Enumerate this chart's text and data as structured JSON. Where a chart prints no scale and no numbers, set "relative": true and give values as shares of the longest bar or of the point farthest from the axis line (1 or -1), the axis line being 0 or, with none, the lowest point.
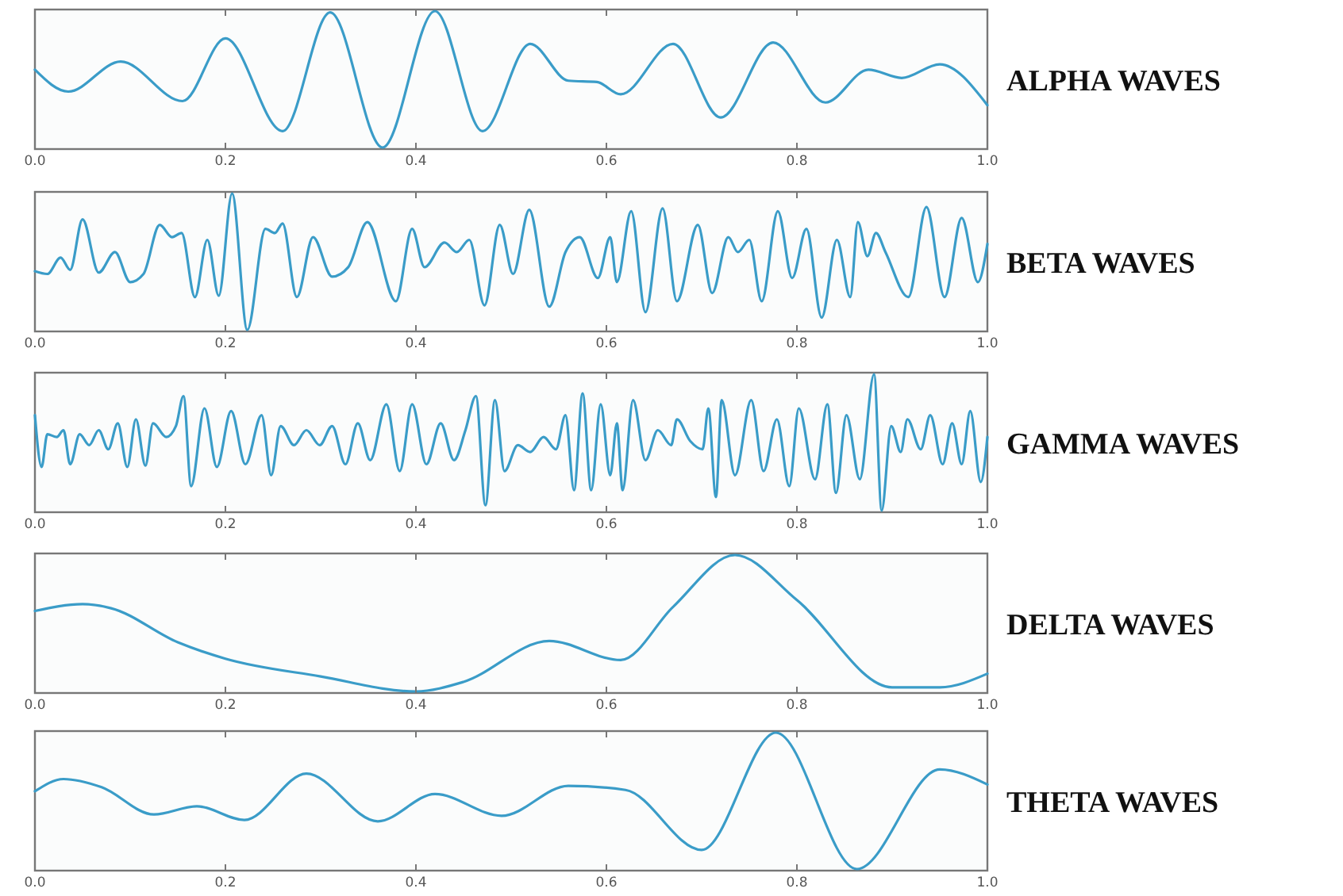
{
  "chart_data": [
    {
      "type": "line",
      "title": "ALPHA WAVES",
      "relative": true,
      "color": "#3a9cc8",
      "xlim": [
        0,
        1
      ],
      "xticks": [
        {
          "value": 0,
          "label": "0.0"
        },
        {
          "value": 0.2,
          "label": "0.2"
        },
        {
          "value": 0.4,
          "label": "0.4"
        },
        {
          "value": 0.6,
          "label": "0.6"
        },
        {
          "value": 0.8,
          "label": "0.8"
        },
        {
          "value": 1,
          "label": "1.0"
        }
      ],
      "x": [
        0,
        0.035,
        0.09,
        0.155,
        0.2,
        0.26,
        0.31,
        0.365,
        0.42,
        0.47,
        0.52,
        0.56,
        0.59,
        0.615,
        0.67,
        0.72,
        0.775,
        0.83,
        0.875,
        0.91,
        0.95,
        1
      ],
      "values": [
        0.57,
        0.41,
        0.63,
        0.34,
        0.8,
        0.12,
        0.99,
        0,
        1,
        0.12,
        0.76,
        0.49,
        0.48,
        0.39,
        0.76,
        0.22,
        0.77,
        0.33,
        0.57,
        0.51,
        0.61,
        0.31
      ]
    },
    {
      "type": "line",
      "title": "BETA WAVES",
      "relative": true,
      "color": "#3a9cc8",
      "xlim": [
        0,
        1
      ],
      "xticks": [
        {
          "value": 0,
          "label": "0.0"
        },
        {
          "value": 0.2,
          "label": "0.2"
        },
        {
          "value": 0.4,
          "label": "0.4"
        },
        {
          "value": 0.6,
          "label": "0.6"
        },
        {
          "value": 0.8,
          "label": "0.8"
        },
        {
          "value": 1,
          "label": "1.0"
        }
      ],
      "x": [
        0,
        0.013,
        0.027,
        0.037,
        0.05,
        0.067,
        0.084,
        0.1,
        0.114,
        0.131,
        0.144,
        0.154,
        0.168,
        0.181,
        0.193,
        0.207,
        0.223,
        0.242,
        0.252,
        0.26,
        0.275,
        0.292,
        0.312,
        0.329,
        0.349,
        0.379,
        0.396,
        0.409,
        0.43,
        0.443,
        0.456,
        0.472,
        0.488,
        0.502,
        0.519,
        0.54,
        0.557,
        0.572,
        0.591,
        0.604,
        0.611,
        0.626,
        0.641,
        0.659,
        0.674,
        0.696,
        0.711,
        0.728,
        0.738,
        0.75,
        0.763,
        0.78,
        0.795,
        0.81,
        0.826,
        0.842,
        0.856,
        0.864,
        0.874,
        0.883,
        0.893,
        0.917,
        0.936,
        0.955,
        0.973,
        0.99,
        1
      ],
      "values": [
        0.43,
        0.41,
        0.53,
        0.44,
        0.81,
        0.42,
        0.57,
        0.35,
        0.41,
        0.77,
        0.68,
        0.71,
        0.24,
        0.66,
        0.25,
        1,
        0,
        0.74,
        0.71,
        0.78,
        0.24,
        0.68,
        0.39,
        0.46,
        0.79,
        0.21,
        0.74,
        0.46,
        0.64,
        0.57,
        0.66,
        0.18,
        0.77,
        0.41,
        0.88,
        0.17,
        0.57,
        0.68,
        0.38,
        0.68,
        0.35,
        0.87,
        0.13,
        0.89,
        0.21,
        0.77,
        0.27,
        0.68,
        0.57,
        0.66,
        0.21,
        0.87,
        0.38,
        0.74,
        0.09,
        0.66,
        0.24,
        0.79,
        0.54,
        0.71,
        0.57,
        0.24,
        0.9,
        0.24,
        0.82,
        0.35,
        0.63
      ]
    },
    {
      "type": "line",
      "title": "GAMMA WAVES",
      "relative": true,
      "color": "#3a9cc8",
      "xlim": [
        0,
        1
      ],
      "xticks": [
        {
          "value": 0,
          "label": "0.0"
        },
        {
          "value": 0.2,
          "label": "0.2"
        },
        {
          "value": 0.4,
          "label": "0.4"
        },
        {
          "value": 0.6,
          "label": "0.6"
        },
        {
          "value": 0.8,
          "label": "0.8"
        },
        {
          "value": 1,
          "label": "1.0"
        }
      ],
      "x": [
        0,
        0.007,
        0.013,
        0.023,
        0.03,
        0.037,
        0.047,
        0.057,
        0.067,
        0.077,
        0.087,
        0.097,
        0.106,
        0.116,
        0.124,
        0.138,
        0.148,
        0.156,
        0.164,
        0.178,
        0.191,
        0.206,
        0.221,
        0.238,
        0.248,
        0.258,
        0.272,
        0.285,
        0.299,
        0.312,
        0.326,
        0.339,
        0.352,
        0.369,
        0.383,
        0.396,
        0.411,
        0.426,
        0.44,
        0.452,
        0.463,
        0.473,
        0.483,
        0.493,
        0.507,
        0.52,
        0.534,
        0.547,
        0.557,
        0.566,
        0.575,
        0.584,
        0.594,
        0.604,
        0.611,
        0.617,
        0.628,
        0.641,
        0.654,
        0.668,
        0.674,
        0.688,
        0.701,
        0.707,
        0.715,
        0.721,
        0.735,
        0.752,
        0.765,
        0.779,
        0.792,
        0.802,
        0.819,
        0.832,
        0.841,
        0.852,
        0.866,
        0.881,
        0.889,
        0.899,
        0.909,
        0.916,
        0.93,
        0.94,
        0.953,
        0.963,
        0.973,
        0.982,
        0.993,
        1
      ],
      "values": [
        0.7,
        0.32,
        0.56,
        0.54,
        0.59,
        0.34,
        0.56,
        0.48,
        0.59,
        0.45,
        0.64,
        0.32,
        0.67,
        0.33,
        0.64,
        0.54,
        0.62,
        0.84,
        0.18,
        0.75,
        0.32,
        0.73,
        0.34,
        0.7,
        0.26,
        0.62,
        0.48,
        0.59,
        0.48,
        0.62,
        0.34,
        0.64,
        0.37,
        0.78,
        0.29,
        0.78,
        0.34,
        0.64,
        0.37,
        0.59,
        0.84,
        0.04,
        0.81,
        0.29,
        0.48,
        0.43,
        0.54,
        0.45,
        0.7,
        0.15,
        0.86,
        0.15,
        0.78,
        0.26,
        0.64,
        0.15,
        0.81,
        0.37,
        0.59,
        0.48,
        0.67,
        0.51,
        0.45,
        0.75,
        0.1,
        0.81,
        0.26,
        0.81,
        0.29,
        0.67,
        0.18,
        0.75,
        0.23,
        0.78,
        0.13,
        0.7,
        0.23,
        1,
        0,
        0.62,
        0.43,
        0.67,
        0.45,
        0.7,
        0.34,
        0.64,
        0.34,
        0.73,
        0.21,
        0.54
      ]
    },
    {
      "type": "line",
      "title": "DELTA WAVES",
      "relative": true,
      "color": "#3a9cc8",
      "xlim": [
        0,
        1
      ],
      "xticks": [
        {
          "value": 0,
          "label": "0.0"
        },
        {
          "value": 0.2,
          "label": "0.2"
        },
        {
          "value": 0.4,
          "label": "0.4"
        },
        {
          "value": 0.6,
          "label": "0.6"
        },
        {
          "value": 0.8,
          "label": "0.8"
        },
        {
          "value": 1,
          "label": "1.0"
        }
      ],
      "x": [
        0,
        0.05,
        0.08,
        0.15,
        0.2,
        0.3,
        0.4,
        0.45,
        0.54,
        0.615,
        0.67,
        0.735,
        0.8,
        0.9,
        0.95,
        1
      ],
      "values": [
        0.59,
        0.64,
        0.61,
        0.36,
        0.24,
        0.11,
        0,
        0.07,
        0.37,
        0.23,
        0.62,
        1,
        0.67,
        0.03,
        0.03,
        0.13
      ]
    },
    {
      "type": "line",
      "title": "THETA WAVES",
      "relative": true,
      "color": "#3a9cc8",
      "xlim": [
        0,
        1
      ],
      "xticks": [
        {
          "value": 0,
          "label": "0.0"
        },
        {
          "value": 0.2,
          "label": "0.2"
        },
        {
          "value": 0.4,
          "label": "0.4"
        },
        {
          "value": 0.6,
          "label": "0.6"
        },
        {
          "value": 0.8,
          "label": "0.8"
        },
        {
          "value": 1,
          "label": "1.0"
        }
      ],
      "x": [
        0,
        0.03,
        0.07,
        0.125,
        0.17,
        0.22,
        0.285,
        0.36,
        0.42,
        0.49,
        0.56,
        0.62,
        0.7,
        0.778,
        0.863,
        0.95,
        1
      ],
      "values": [
        0.57,
        0.66,
        0.6,
        0.4,
        0.46,
        0.36,
        0.7,
        0.35,
        0.55,
        0.39,
        0.61,
        0.58,
        0.14,
        1,
        0,
        0.73,
        0.62
      ]
    }
  ]
}
